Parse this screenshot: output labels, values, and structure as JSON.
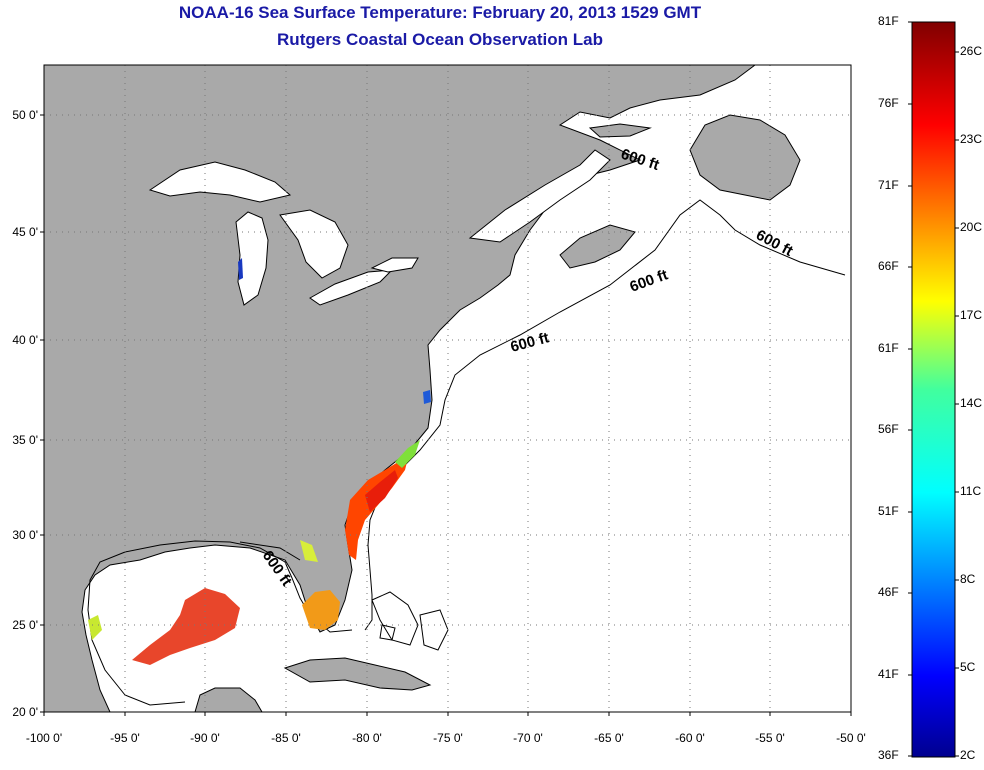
{
  "title": "NOAA-16 Sea Surface Temperature:  February 20, 2013 1529 GMT",
  "subtitle": "Rutgers Coastal Ocean Observation Lab",
  "latitude_labels": [
    "50 0'",
    "45 0'",
    "40 0'",
    "35 0'",
    "30 0'",
    "25 0'",
    "20 0'"
  ],
  "longitude_labels": [
    "-100 0'",
    "-95 0'",
    "-90 0'",
    "-85 0'",
    "-80 0'",
    "-75 0'",
    "-70 0'",
    "-65 0'",
    "-60 0'",
    "-55 0'",
    "-50 0'"
  ],
  "contour_label": "600 ft",
  "colorbar": {
    "fahrenheit_labels": [
      "81F",
      "76F",
      "71F",
      "66F",
      "61F",
      "56F",
      "51F",
      "46F",
      "41F",
      "36F"
    ],
    "celsius_labels": [
      "26C",
      "23C",
      "20C",
      "17C",
      "14C",
      "11C",
      "8C",
      "5C",
      "2C"
    ]
  },
  "colors": {
    "land": "#a9a9a9",
    "ocean": "#ffffff",
    "title": "#1a1aa6",
    "grid": "#777777"
  }
}
